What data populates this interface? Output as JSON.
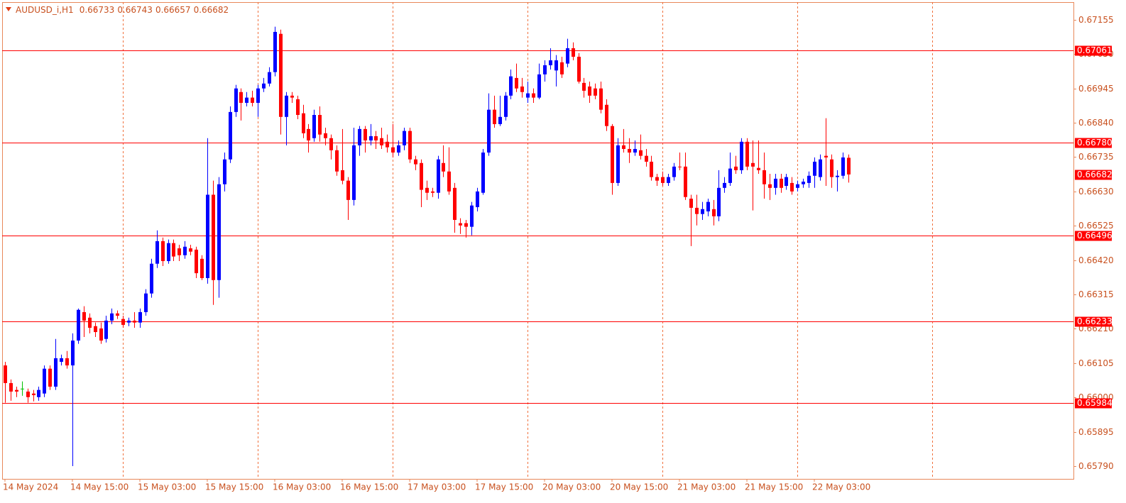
{
  "chart_data": {
    "type": "candlestick",
    "symbol": "AUDUSD_i,H1",
    "ohlc": [
      0.66733,
      0.66743,
      0.66657,
      0.66682
    ],
    "bull_color": "#0000ff",
    "bear_color": "#ff0000",
    "doji_color": "#00c000",
    "level_color": "#ff0000",
    "xlim": [
      -0.5,
      190.1
    ],
    "ylim": [
      0.65751,
      0.67209
    ],
    "xticks": [
      {
        "value": 0,
        "label": "14 May 2024"
      },
      {
        "value": 12,
        "label": "14 May 15:00"
      },
      {
        "value": 24,
        "label": "15 May 03:00"
      },
      {
        "value": 36,
        "label": "15 May 15:00"
      },
      {
        "value": 48,
        "label": "16 May 03:00"
      },
      {
        "value": 60,
        "label": "16 May 15:00"
      },
      {
        "value": 72,
        "label": "17 May 03:00"
      },
      {
        "value": 84,
        "label": "17 May 15:00"
      },
      {
        "value": 96,
        "label": "20 May 03:00"
      },
      {
        "value": 108,
        "label": "20 May 15:00"
      },
      {
        "value": 120,
        "label": "21 May 03:00"
      },
      {
        "value": 132,
        "label": "21 May 15:00"
      },
      {
        "value": 144,
        "label": "22 May 03:00"
      }
    ],
    "vgrid": [
      21,
      45,
      69,
      93,
      117,
      141,
      165
    ],
    "yticks": [
      {
        "value": 0.67155,
        "label": "0.67155"
      },
      {
        "value": 0.6705,
        "label": "0.67050"
      },
      {
        "value": 0.66945,
        "label": "0.66945"
      },
      {
        "value": 0.6684,
        "label": "0.66840"
      },
      {
        "value": 0.66735,
        "label": "0.66735"
      },
      {
        "value": 0.6663,
        "label": "0.66630"
      },
      {
        "value": 0.66525,
        "label": "0.66525"
      },
      {
        "value": 0.6642,
        "label": "0.66420"
      },
      {
        "value": 0.66315,
        "label": "0.66315"
      },
      {
        "value": 0.6621,
        "label": "0.66210"
      },
      {
        "value": 0.66105,
        "label": "0.66105"
      },
      {
        "value": 0.66,
        "label": "0.66000"
      },
      {
        "value": 0.65895,
        "label": "0.65895"
      },
      {
        "value": 0.6579,
        "label": "0.65790"
      }
    ],
    "levels": [
      {
        "value": 0.67061,
        "label": "0.67061"
      },
      {
        "value": 0.6678,
        "label": "0.66780"
      },
      {
        "value": 0.66496,
        "label": "0.66496"
      },
      {
        "value": 0.66233,
        "label": "0.66233"
      },
      {
        "value": 0.65984,
        "label": "0.65984"
      }
    ],
    "bid": {
      "value": 0.66682,
      "label": "0.66682"
    },
    "open": [
      0.66098,
      0.66044,
      0.66023,
      0.66027,
      0.66018,
      0.66012,
      0.66001,
      0.66012,
      0.66088,
      0.66033,
      0.66109,
      0.6612,
      0.66098,
      0.66174,
      0.66261,
      0.66244,
      0.66218,
      0.66211,
      0.66179,
      0.66235,
      0.66257,
      0.6624,
      0.66229,
      0.66235,
      0.66229,
      0.66261,
      0.66318,
      0.66409,
      0.66478,
      0.66417,
      0.66472,
      0.66456,
      0.66435,
      0.66456,
      0.66452,
      0.66424,
      0.66365,
      0.6662,
      0.66359,
      0.66652,
      0.66728,
      0.66873,
      0.66934,
      0.66901,
      0.66917,
      0.66901,
      0.66945,
      0.6696,
      0.66995,
      0.67112,
      0.66858,
      0.66923,
      0.66912,
      0.66869,
      0.66821,
      0.66793,
      0.66864,
      0.66808,
      0.66793,
      0.66756,
      0.66695,
      0.66663,
      0.66604,
      0.66771,
      0.66821,
      0.66786,
      0.66799,
      0.66793,
      0.66782,
      0.66765,
      0.66749,
      0.66771,
      0.66815,
      0.66728,
      0.66717,
      0.66641,
      0.6663,
      0.66626,
      0.66717,
      0.66691,
      0.66641,
      0.66533,
      0.66533,
      0.66522,
      0.66582,
      0.66626,
      0.66749,
      0.6688,
      0.66836,
      0.66858,
      0.66923,
      0.66977,
      0.66951,
      0.66917,
      0.6693,
      0.66917,
      0.66988,
      0.67016,
      0.67,
      0.67025,
      0.67021,
      0.67068,
      0.67042,
      0.66962,
      0.66951,
      0.66945,
      0.66945,
      0.66895,
      0.6683,
      0.66656,
      0.66771,
      0.6676,
      0.66749,
      0.66756,
      0.66739,
      0.66721,
      0.66674,
      0.66674,
      0.66656,
      0.66674,
      0.66706,
      0.66706,
      0.66608,
      0.6658,
      0.66561,
      0.66569,
      0.66576,
      0.66554,
      0.66641,
      0.66656,
      0.66706,
      0.66695,
      0.66782,
      0.66717,
      0.66702,
      0.66695,
      0.66652,
      0.66641,
      0.66669,
      0.66647,
      0.66656,
      0.66641,
      0.66652,
      0.66656,
      0.66678,
      0.66674,
      0.66739,
      0.66728,
      0.66674,
      0.66678,
      0.66733
    ],
    "high": [
      0.66109,
      0.66055,
      0.66033,
      0.66049,
      0.66027,
      0.66023,
      0.66033,
      0.66098,
      0.66098,
      0.66179,
      0.66131,
      0.66142,
      0.66196,
      0.66272,
      0.66279,
      0.66257,
      0.66229,
      0.66229,
      0.6625,
      0.66272,
      0.66266,
      0.6625,
      0.66244,
      0.66261,
      0.66272,
      0.66331,
      0.66424,
      0.66511,
      0.66489,
      0.66483,
      0.66483,
      0.66467,
      0.66478,
      0.66467,
      0.66461,
      0.66435,
      0.66793,
      0.66663,
      0.66674,
      0.66749,
      0.6689,
      0.66956,
      0.66945,
      0.66934,
      0.66938,
      0.66956,
      0.66977,
      0.6701,
      0.67134,
      0.67125,
      0.66934,
      0.66934,
      0.66923,
      0.66895,
      0.66836,
      0.6688,
      0.6689,
      0.66825,
      0.66804,
      0.66771,
      0.66821,
      0.66674,
      0.66825,
      0.6683,
      0.6683,
      0.66836,
      0.66815,
      0.66825,
      0.66804,
      0.66836,
      0.66786,
      0.66825,
      0.66825,
      0.66739,
      0.66728,
      0.66663,
      0.66641,
      0.66739,
      0.66771,
      0.66765,
      0.66656,
      0.66548,
      0.66543,
      0.66598,
      0.66641,
      0.6676,
      0.6693,
      0.66923,
      0.66923,
      0.66934,
      0.67003,
      0.67021,
      0.66977,
      0.66966,
      0.66945,
      0.67021,
      0.67031,
      0.67068,
      0.67047,
      0.67042,
      0.67097,
      0.67086,
      0.67053,
      0.66977,
      0.66966,
      0.6696,
      0.66966,
      0.66912,
      0.66836,
      0.66793,
      0.66821,
      0.66793,
      0.66786,
      0.66804,
      0.6676,
      0.66739,
      0.66684,
      0.66691,
      0.66684,
      0.66717,
      0.66749,
      0.66749,
      0.6662,
      0.6662,
      0.66598,
      0.66608,
      0.66604,
      0.66695,
      0.66674,
      0.66749,
      0.66739,
      0.66793,
      0.66793,
      0.66786,
      0.66786,
      0.66749,
      0.66684,
      0.66684,
      0.66684,
      0.66684,
      0.66674,
      0.66663,
      0.66669,
      0.66691,
      0.66734,
      0.66743,
      0.66854,
      0.66743,
      0.66695,
      0.66749,
      0.66743
    ],
    "low": [
      0.65984,
      0.6599,
      0.66001,
      0.66005,
      0.65984,
      0.65988,
      0.6599,
      0.66001,
      0.66023,
      0.66023,
      0.66098,
      0.66088,
      0.6579,
      0.66164,
      0.66185,
      0.66196,
      0.66185,
      0.66164,
      0.66168,
      0.66224,
      0.6624,
      0.66213,
      0.66218,
      0.66213,
      0.66213,
      0.6625,
      0.66305,
      0.66396,
      0.66402,
      0.66409,
      0.66417,
      0.66417,
      0.66424,
      0.66435,
      0.66365,
      0.66359,
      0.66348,
      0.66283,
      0.66305,
      0.6663,
      0.66717,
      0.66858,
      0.66847,
      0.6689,
      0.6689,
      0.66858,
      0.66934,
      0.66951,
      0.66982,
      0.66804,
      0.66771,
      0.66901,
      0.66851,
      0.66793,
      0.66749,
      0.66782,
      0.66782,
      0.66771,
      0.66728,
      0.66678,
      0.66652,
      0.66543,
      0.66587,
      0.66739,
      0.66749,
      0.66771,
      0.6676,
      0.6676,
      0.66749,
      0.66734,
      0.66739,
      0.66756,
      0.66717,
      0.66695,
      0.66582,
      0.66604,
      0.66613,
      0.66608,
      0.66674,
      0.6662,
      0.66504,
      0.665,
      0.66489,
      0.66496,
      0.66569,
      0.6662,
      0.66739,
      0.66825,
      0.6683,
      0.66847,
      0.66912,
      0.66934,
      0.66917,
      0.66901,
      0.66901,
      0.66912,
      0.66966,
      0.67003,
      0.66951,
      0.66977,
      0.6701,
      0.67031,
      0.6696,
      0.66917,
      0.66901,
      0.66912,
      0.66869,
      0.66815,
      0.6662,
      0.66647,
      0.66749,
      0.66717,
      0.66739,
      0.66728,
      0.66706,
      0.66663,
      0.66647,
      0.66647,
      0.66647,
      0.66663,
      0.66695,
      0.66604,
      0.66463,
      0.66526,
      0.66543,
      0.66554,
      0.66526,
      0.66539,
      0.66626,
      0.66647,
      0.66684,
      0.66684,
      0.66695,
      0.66572,
      0.66684,
      0.66608,
      0.66604,
      0.6662,
      0.66626,
      0.66635,
      0.6662,
      0.6663,
      0.66641,
      0.66641,
      0.66641,
      0.66663,
      0.66647,
      0.66641,
      0.6663,
      0.66669,
      0.66657
    ],
    "close": [
      0.66044,
      0.66018,
      0.66018,
      0.66027,
      0.66001,
      0.66007,
      0.66023,
      0.66088,
      0.66033,
      0.6612,
      0.6612,
      0.66098,
      0.66174,
      0.66268,
      0.66235,
      0.66213,
      0.662,
      0.66174,
      0.66235,
      0.66257,
      0.6625,
      0.66222,
      0.66235,
      0.66229,
      0.66261,
      0.66318,
      0.66409,
      0.66478,
      0.66417,
      0.66472,
      0.66431,
      0.66435,
      0.66461,
      0.66446,
      0.6638,
      0.66365,
      0.6662,
      0.66359,
      0.66652,
      0.66728,
      0.66873,
      0.66945,
      0.66901,
      0.66917,
      0.66901,
      0.66945,
      0.6696,
      0.66995,
      0.67118,
      0.66858,
      0.66923,
      0.66917,
      0.66864,
      0.66808,
      0.66786,
      0.66864,
      0.66804,
      0.66793,
      0.66756,
      0.66691,
      0.66663,
      0.66604,
      0.66771,
      0.66821,
      0.66786,
      0.66799,
      0.66786,
      0.66771,
      0.66765,
      0.66749,
      0.66771,
      0.66815,
      0.66728,
      0.66713,
      0.66635,
      0.66626,
      0.66626,
      0.66728,
      0.66691,
      0.6663,
      0.66543,
      0.66526,
      0.66522,
      0.66587,
      0.6663,
      0.66749,
      0.6688,
      0.66836,
      0.66858,
      0.66923,
      0.66982,
      0.66945,
      0.66934,
      0.6693,
      0.66917,
      0.66988,
      0.67016,
      0.67031,
      0.67031,
      0.66988,
      0.67068,
      0.67042,
      0.66966,
      0.66938,
      0.66923,
      0.66923,
      0.6688,
      0.6683,
      0.66656,
      0.66771,
      0.6676,
      0.66749,
      0.6676,
      0.66739,
      0.66721,
      0.66674,
      0.66663,
      0.66656,
      0.66674,
      0.66706,
      0.66704,
      0.66613,
      0.6658,
      0.66561,
      0.66576,
      0.66598,
      0.66554,
      0.66641,
      0.66656,
      0.667,
      0.66695,
      0.66782,
      0.66706,
      0.66706,
      0.66695,
      0.66652,
      0.66641,
      0.66669,
      0.66641,
      0.66674,
      0.6663,
      0.66652,
      0.6666,
      0.66678,
      0.66721,
      0.66728,
      0.66734,
      0.66674,
      0.66678,
      0.66734,
      0.66682
    ]
  }
}
